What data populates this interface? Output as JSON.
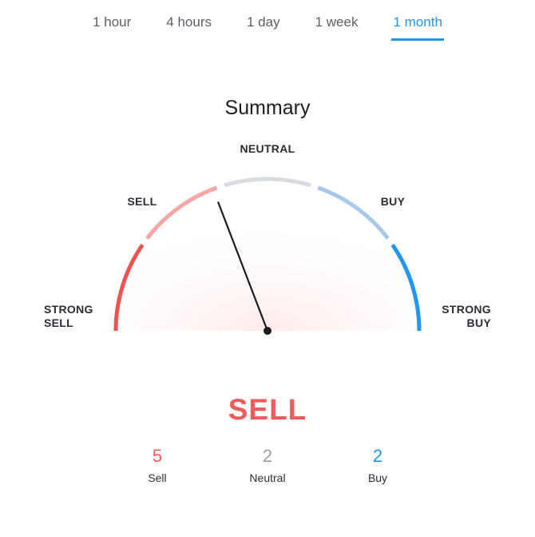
{
  "tabs": {
    "items": [
      "1 hour",
      "4 hours",
      "1 day",
      "1 week",
      "1 month"
    ],
    "active_index": 4,
    "active_color": "#2196f3",
    "inactive_color": "#5a5f66"
  },
  "title": "Summary",
  "gauge": {
    "type": "gauge",
    "labels": {
      "strong_sell": "STRONG\nSELL",
      "sell": "SELL",
      "neutral": "NEUTRAL",
      "buy": "BUY",
      "strong_buy": "STRONG\nBUY"
    },
    "segment_colors": {
      "strong_sell": "#ef5350",
      "sell": "#f7a6a4",
      "neutral": "#d8dbe0",
      "buy": "#a7c8ea",
      "strong_buy": "#2196f3"
    },
    "arc_stroke_width": 5,
    "radius": 190,
    "gap_deg": 3,
    "needle_angle_deg": 249,
    "needle_color": "#1b1d22",
    "needle_width": 2.2,
    "pivot_radius": 5,
    "fill_gradient_inner": "#ffd9d8",
    "fill_gradient_outer": "#ffffff"
  },
  "verdict": {
    "text": "SELL",
    "color": "#f05c5c"
  },
  "counts": {
    "sell": {
      "value": 5,
      "label": "Sell",
      "color": "#f05c5c"
    },
    "neutral": {
      "value": 2,
      "label": "Neutral",
      "color": "#9aa0a6"
    },
    "buy": {
      "value": 2,
      "label": "Buy",
      "color": "#2196f3"
    }
  }
}
